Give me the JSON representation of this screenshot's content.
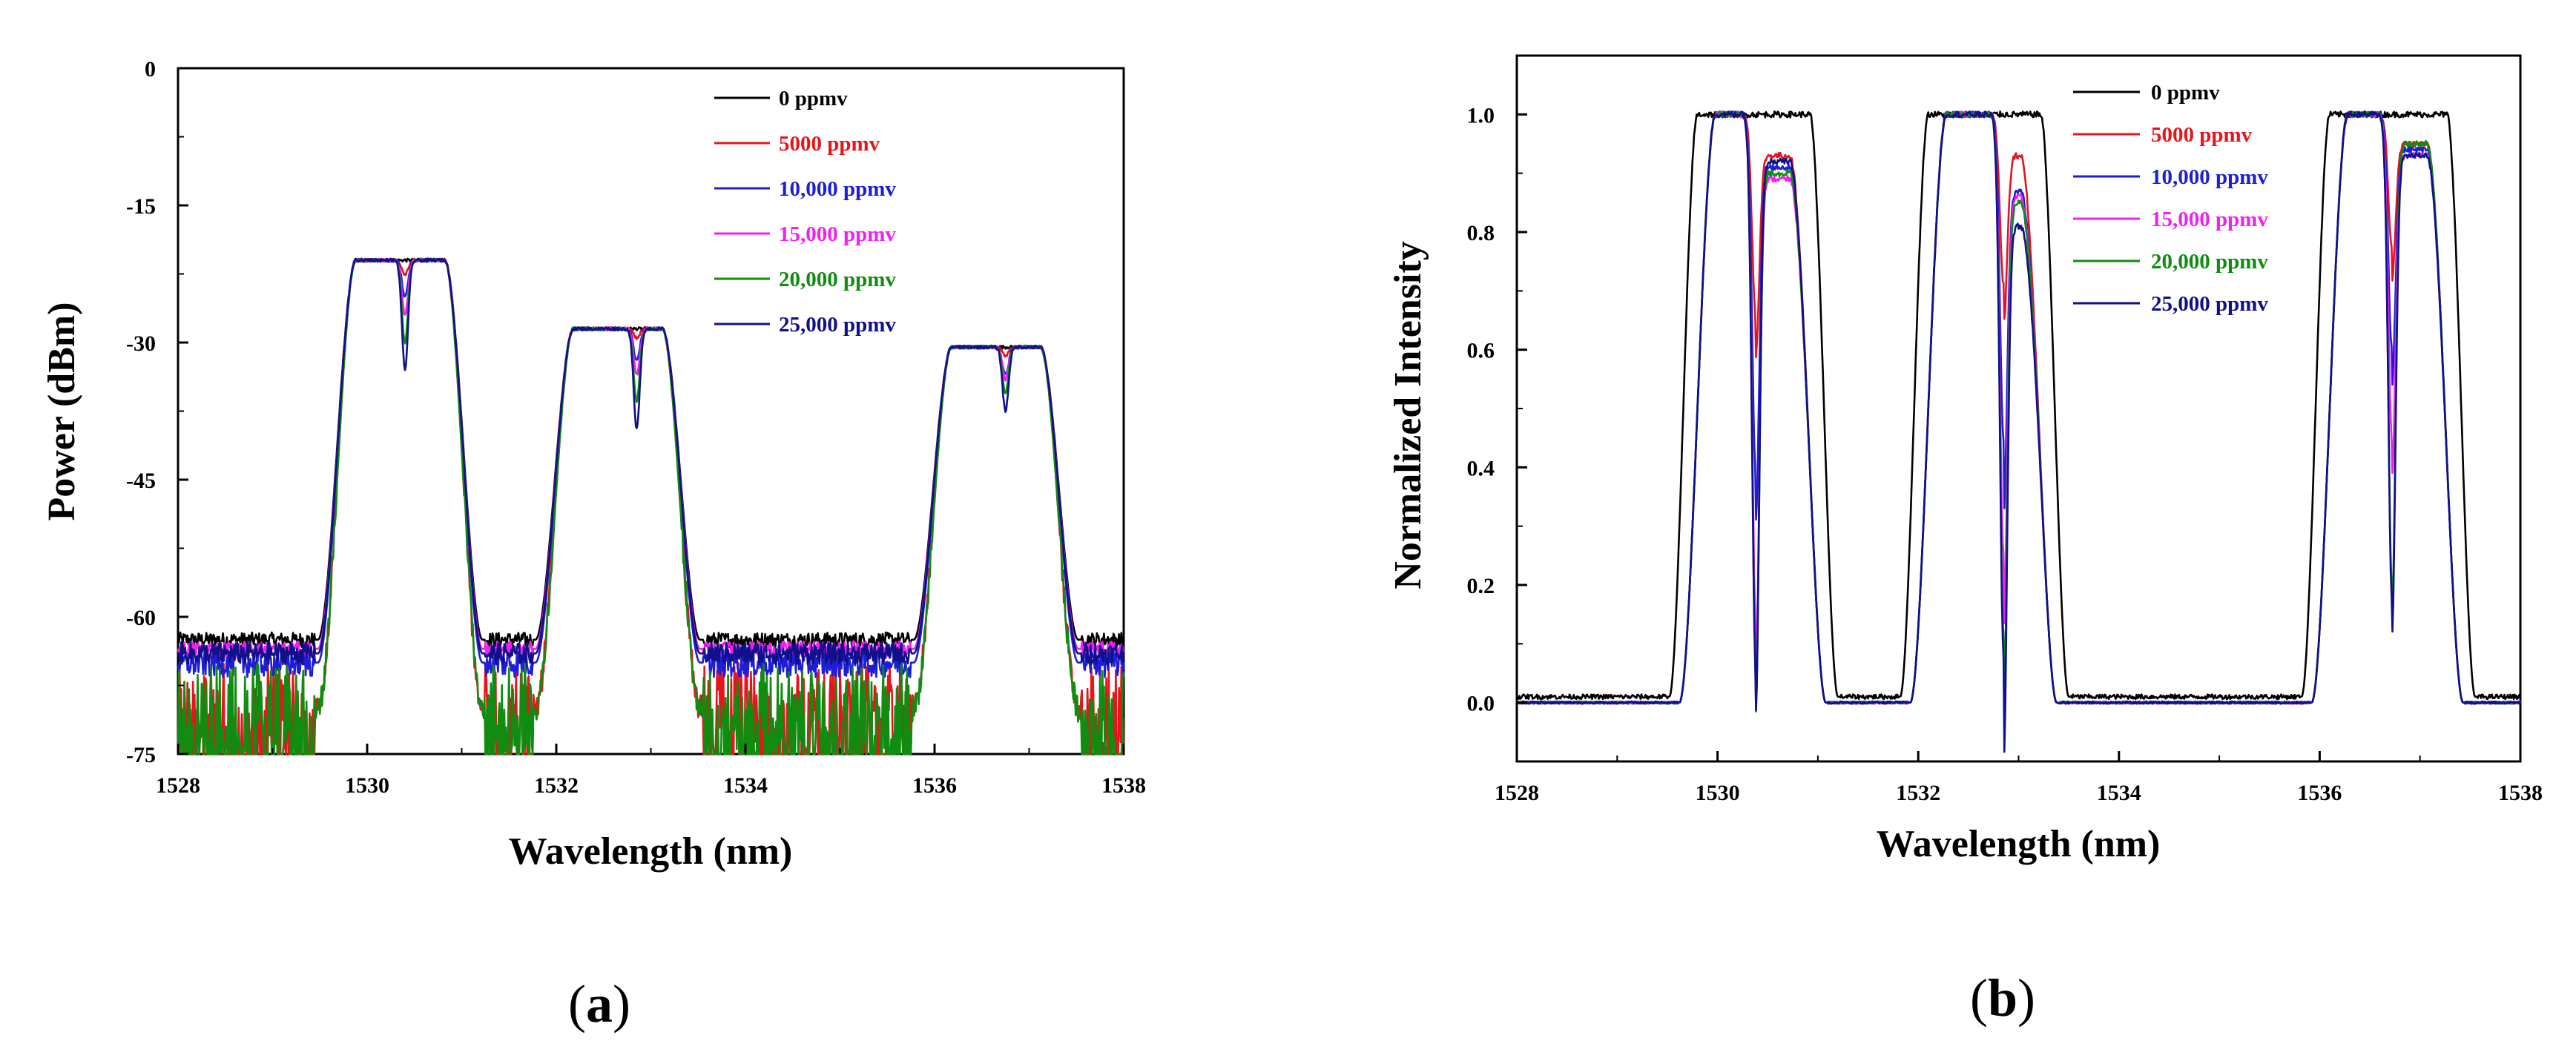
{
  "chart_data": [
    {
      "id": "a",
      "type": "line",
      "caption": "a",
      "xlabel": "Wavelength (nm)",
      "ylabel": "Power (dBm)",
      "xlim": [
        1528,
        1538
      ],
      "ylim": [
        -75,
        0
      ],
      "xticks": [
        1528,
        1530,
        1532,
        1534,
        1536,
        1538
      ],
      "yticks": [
        0,
        -15,
        -30,
        -45,
        -60,
        -75
      ],
      "ytick_labels": [
        "0",
        "-15",
        "-30",
        "-45",
        "-60",
        "-75"
      ],
      "grid": false,
      "legend_position": "top-right",
      "passbands": [
        {
          "start": 1529.6,
          "end": 1531.1,
          "peak": -21,
          "dip_center": 1530.4
        },
        {
          "start": 1531.9,
          "end": 1533.4,
          "peak": -28.5,
          "dip_center": 1532.85
        },
        {
          "start": 1535.9,
          "end": 1537.4,
          "peak": -30.5,
          "dip_center": 1536.75
        }
      ],
      "series": [
        {
          "name": "0 ppmv",
          "color": "#000000",
          "baseline": -62.5,
          "noise": 0.8,
          "dips": [
            0,
            0,
            0
          ],
          "floor_spikes": false
        },
        {
          "name": "5000 ppmv",
          "color": "#e8141c",
          "baseline": -70,
          "noise": 5,
          "dips": [
            1.5,
            1,
            1
          ],
          "floor_spikes": true
        },
        {
          "name": "10,000 ppmv",
          "color": "#1e1ed8",
          "baseline": -65,
          "noise": 1.6,
          "dips": [
            4,
            3.5,
            3
          ],
          "floor_spikes": false
        },
        {
          "name": "15,000 ppmv",
          "color": "#f020f0",
          "baseline": -63.5,
          "noise": 0.8,
          "dips": [
            6,
            5,
            3.5
          ],
          "floor_spikes": false
        },
        {
          "name": "20,000 ppmv",
          "color": "#108c10",
          "baseline": -70,
          "noise": 5,
          "dips": [
            9,
            8,
            5
          ],
          "floor_spikes": true
        },
        {
          "name": "25,000 ppmv",
          "color": "#10108a",
          "baseline": -64,
          "noise": 1.2,
          "dips": [
            12,
            11,
            7
          ],
          "floor_spikes": false
        }
      ]
    },
    {
      "id": "b",
      "type": "line",
      "caption": "b",
      "xlabel": "Wavelength (nm)",
      "ylabel": "Normalized Intensity",
      "xlim": [
        1528,
        1538
      ],
      "ylim": [
        -0.1,
        1.1
      ],
      "xticks": [
        1528,
        1530,
        1532,
        1534,
        1536,
        1538
      ],
      "yticks": [
        0.0,
        0.2,
        0.4,
        0.6,
        0.8,
        1.0
      ],
      "ytick_labels": [
        "0.0",
        "0.2",
        "0.4",
        "0.6",
        "0.8",
        "1.0"
      ],
      "grid": false,
      "legend_position": "top-right",
      "passbands": [
        {
          "start": 1529.7,
          "end": 1531.0,
          "peak": 1.0,
          "dip_center": 1530.38
        },
        {
          "start": 1532.0,
          "end": 1533.3,
          "peak": 1.0,
          "dip_center": 1532.85
        },
        {
          "start": 1536.0,
          "end": 1537.35,
          "peak": 1.0,
          "dip_center": 1536.72
        }
      ],
      "series": [
        {
          "name": "0 ppmv",
          "color": "#000000",
          "baseline": 0.01,
          "noise": 0.004,
          "dips": [
            0,
            0,
            0
          ],
          "secondary_peaks": [
            1.0,
            1.0,
            1.0
          ],
          "wide": true
        },
        {
          "name": "5000 ppmv",
          "color": "#e8141c",
          "baseline": 0.0,
          "noise": 0.002,
          "dips": [
            0.34,
            0.29,
            0.23
          ],
          "secondary_peaks": [
            0.93,
            0.93,
            0.95
          ],
          "wide": false
        },
        {
          "name": "10,000 ppmv",
          "color": "#1e1ed8",
          "baseline": 0.0,
          "noise": 0.002,
          "dips": [
            0.6,
            0.55,
            0.4
          ],
          "secondary_peaks": [
            0.91,
            0.87,
            0.94
          ],
          "wide": false
        },
        {
          "name": "15,000 ppmv",
          "color": "#f020f0",
          "baseline": 0.0,
          "noise": 0.002,
          "dips": [
            0.85,
            0.75,
            0.55
          ],
          "secondary_peaks": [
            0.89,
            0.86,
            0.93
          ],
          "wide": false
        },
        {
          "name": "20,000 ppmv",
          "color": "#108c10",
          "baseline": 0.0,
          "noise": 0.002,
          "dips": [
            0.92,
            0.88,
            0.8
          ],
          "secondary_peaks": [
            0.9,
            0.85,
            0.95
          ],
          "wide": false
        },
        {
          "name": "25,000 ppmv",
          "color": "#10108a",
          "baseline": 0.0,
          "noise": 0.002,
          "dips": [
            0.94,
            0.92,
            0.82
          ],
          "secondary_peaks": [
            0.92,
            0.81,
            0.93
          ],
          "wide": false
        }
      ]
    }
  ]
}
